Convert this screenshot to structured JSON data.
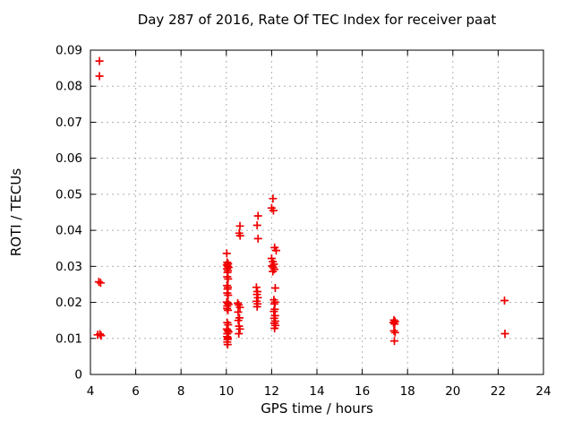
{
  "chart_data": {
    "type": "scatter",
    "title": "Day 287 of 2016, Rate Of TEC Index for receiver paat",
    "xlabel": "GPS time / hours",
    "ylabel": "ROTI / TECUs",
    "xlim": [
      4,
      24
    ],
    "ylim": [
      0,
      0.09
    ],
    "xticks": [
      4,
      6,
      8,
      10,
      12,
      14,
      16,
      18,
      20,
      22,
      24
    ],
    "xtick_labels": [
      "4",
      "6",
      "8",
      "10",
      "12",
      "14",
      "16",
      "18",
      "20",
      "22",
      "24"
    ],
    "yticks": [
      0,
      0.01,
      0.02,
      0.03,
      0.04,
      0.05,
      0.06,
      0.07,
      0.08,
      0.09
    ],
    "ytick_labels": [
      "0",
      "0.01",
      "0.02",
      "0.03",
      "0.04",
      "0.05",
      "0.06",
      "0.07",
      "0.08",
      "0.09"
    ],
    "grid": true,
    "legend_position": "none",
    "marker_symbol": "plus",
    "colors": {
      "marker": "#f00000",
      "grid": "#b0b0b0",
      "axis": "#000000",
      "background": "#ffffff"
    },
    "series": [
      {
        "name": "ROTI",
        "points": [
          [
            4.4,
            0.087
          ],
          [
            4.4,
            0.0828
          ],
          [
            4.37,
            0.0257
          ],
          [
            4.45,
            0.0254
          ],
          [
            4.32,
            0.011
          ],
          [
            4.42,
            0.0112
          ],
          [
            4.47,
            0.0108
          ],
          [
            10.02,
            0.0336
          ],
          [
            10.04,
            0.0311
          ],
          [
            10.08,
            0.0307
          ],
          [
            10.02,
            0.0304
          ],
          [
            10.06,
            0.03
          ],
          [
            10.1,
            0.0297
          ],
          [
            10.03,
            0.0293
          ],
          [
            10.07,
            0.0288
          ],
          [
            10.05,
            0.0283
          ],
          [
            10.04,
            0.0271
          ],
          [
            10.08,
            0.0265
          ],
          [
            10.03,
            0.0247
          ],
          [
            10.07,
            0.0242
          ],
          [
            10.05,
            0.0237
          ],
          [
            10.04,
            0.0226
          ],
          [
            10.08,
            0.022
          ],
          [
            10.02,
            0.0201
          ],
          [
            10.06,
            0.0198
          ],
          [
            10.1,
            0.0195
          ],
          [
            10.04,
            0.019
          ],
          [
            10.03,
            0.0183
          ],
          [
            10.07,
            0.0178
          ],
          [
            10.04,
            0.0144
          ],
          [
            10.08,
            0.0138
          ],
          [
            10.02,
            0.0126
          ],
          [
            10.06,
            0.0122
          ],
          [
            10.1,
            0.0118
          ],
          [
            10.04,
            0.0113
          ],
          [
            10.03,
            0.0105
          ],
          [
            10.07,
            0.0101
          ],
          [
            10.05,
            0.0097
          ],
          [
            10.04,
            0.009
          ],
          [
            10.06,
            0.0083
          ],
          [
            10.6,
            0.0412
          ],
          [
            10.57,
            0.0392
          ],
          [
            10.61,
            0.0385
          ],
          [
            10.5,
            0.0198
          ],
          [
            10.55,
            0.0193
          ],
          [
            10.6,
            0.0186
          ],
          [
            10.52,
            0.0173
          ],
          [
            10.58,
            0.0157
          ],
          [
            10.53,
            0.015
          ],
          [
            10.56,
            0.0134
          ],
          [
            10.6,
            0.0126
          ],
          [
            10.55,
            0.0113
          ],
          [
            11.4,
            0.044
          ],
          [
            11.36,
            0.0414
          ],
          [
            11.4,
            0.0377
          ],
          [
            11.33,
            0.0242
          ],
          [
            11.37,
            0.023
          ],
          [
            11.35,
            0.0222
          ],
          [
            11.39,
            0.0213
          ],
          [
            11.34,
            0.0203
          ],
          [
            11.38,
            0.0196
          ],
          [
            11.36,
            0.0188
          ],
          [
            12.06,
            0.0488
          ],
          [
            12.0,
            0.0462
          ],
          [
            12.08,
            0.0455
          ],
          [
            12.13,
            0.0352
          ],
          [
            12.2,
            0.0344
          ],
          [
            12.0,
            0.0322
          ],
          [
            12.05,
            0.0313
          ],
          [
            12.1,
            0.0306
          ],
          [
            12.02,
            0.0301
          ],
          [
            12.07,
            0.0297
          ],
          [
            12.12,
            0.0292
          ],
          [
            12.05,
            0.0286
          ],
          [
            12.16,
            0.024
          ],
          [
            12.1,
            0.0207
          ],
          [
            12.15,
            0.0201
          ],
          [
            12.12,
            0.0196
          ],
          [
            12.14,
            0.0181
          ],
          [
            12.1,
            0.0175
          ],
          [
            12.15,
            0.0163
          ],
          [
            12.11,
            0.0156
          ],
          [
            12.16,
            0.0148
          ],
          [
            12.12,
            0.0142
          ],
          [
            12.17,
            0.0136
          ],
          [
            12.13,
            0.0128
          ],
          [
            17.4,
            0.0151
          ],
          [
            17.45,
            0.0147
          ],
          [
            17.38,
            0.0144
          ],
          [
            17.43,
            0.014
          ],
          [
            17.4,
            0.0121
          ],
          [
            17.45,
            0.0116
          ],
          [
            17.42,
            0.0093
          ],
          [
            22.28,
            0.0205
          ],
          [
            22.3,
            0.0113
          ]
        ]
      }
    ]
  }
}
